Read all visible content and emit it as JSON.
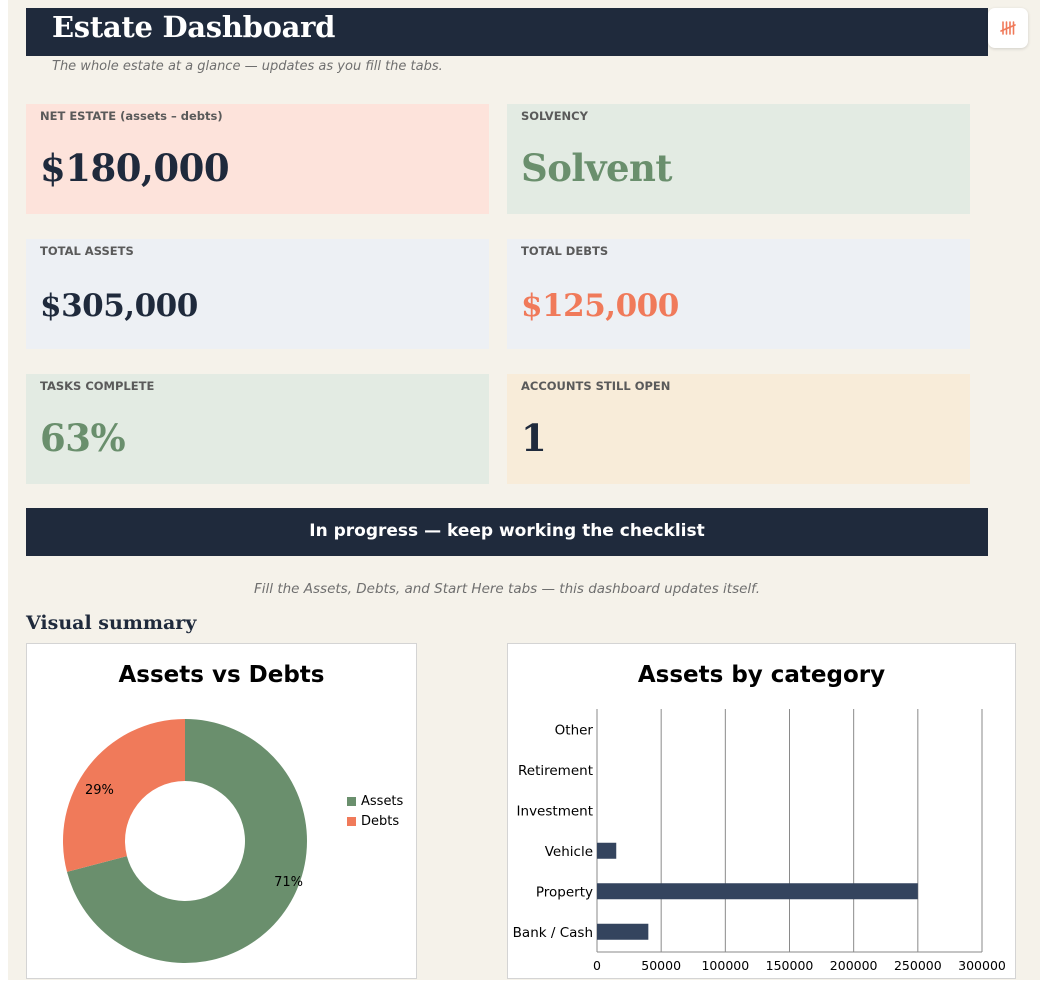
{
  "header": {
    "title": "Estate Dashboard",
    "subtitle": "The whole estate at a glance — updates as you fill the tabs.",
    "logo_icon": "tally-marks-icon"
  },
  "cards": {
    "net_estate": {
      "label": "NET ESTATE (assets – debts)",
      "value": "$180,000",
      "bg": "#fde3db",
      "color": "#1f2a3c"
    },
    "solvency": {
      "label": "SOLVENCY",
      "value": "Solvent",
      "bg": "#e3ebe3",
      "color": "#6a8f6d"
    },
    "total_assets": {
      "label": "TOTAL ASSETS",
      "value": "$305,000",
      "bg": "#edf0f4",
      "color": "#1f2a3c"
    },
    "total_debts": {
      "label": "TOTAL DEBTS",
      "value": "$125,000",
      "bg": "#edf0f4",
      "color": "#f07a5a"
    },
    "tasks_complete": {
      "label": "TASKS COMPLETE",
      "value": "63%",
      "bg": "#e3ebe3",
      "color": "#6a8f6d"
    },
    "accounts_open": {
      "label": "ACCOUNTS STILL OPEN",
      "value": "1",
      "bg": "#f8ecd9",
      "color": "#1f2a3c"
    }
  },
  "status_banner": "In progress — keep working the checklist",
  "hint": "Fill the Assets, Debts, and Start Here tabs — this dashboard updates itself.",
  "section_title": "Visual summary",
  "colors": {
    "navy": "#1f2a3c",
    "green": "#6a8f6d",
    "coral": "#f07a5a",
    "bar": "#34445e"
  },
  "chart_data": [
    {
      "type": "pie",
      "title": "Assets vs Debts",
      "donut": true,
      "categories": [
        "Assets",
        "Debts"
      ],
      "values": [
        305000,
        125000
      ],
      "data_labels": [
        "71%",
        "29%"
      ],
      "colors": [
        "#6a8f6d",
        "#f07a5a"
      ],
      "legend": "right"
    },
    {
      "type": "bar",
      "orientation": "horizontal",
      "title": "Assets by category",
      "categories": [
        "Bank / Cash",
        "Property",
        "Vehicle",
        "Investment",
        "Retirement",
        "Other"
      ],
      "values": [
        40000,
        250000,
        15000,
        0,
        0,
        0
      ],
      "xlim": [
        0,
        300000
      ],
      "xticks": [
        0,
        50000,
        100000,
        150000,
        200000,
        250000,
        300000
      ],
      "xtick_labels": [
        "0",
        "50000",
        "100000",
        "150000",
        "200000",
        "250000",
        "300000"
      ],
      "grid": true,
      "color": "#34445e"
    }
  ]
}
